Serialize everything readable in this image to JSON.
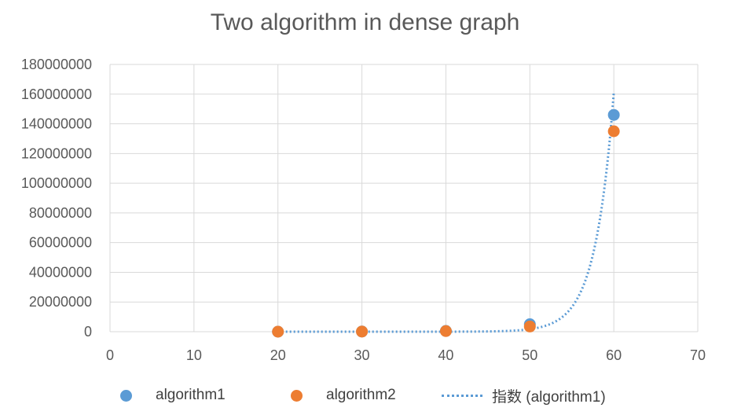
{
  "chart_data": {
    "type": "scatter",
    "title": "Two algorithm in dense graph",
    "xlim": [
      0,
      70
    ],
    "ylim": [
      0,
      180000000
    ],
    "xticks": [
      0,
      10,
      20,
      30,
      40,
      50,
      60,
      70
    ],
    "yticks": [
      0,
      20000000,
      40000000,
      60000000,
      80000000,
      100000000,
      120000000,
      140000000,
      160000000,
      180000000
    ],
    "grid": true,
    "legend_position": "bottom",
    "series": [
      {
        "name": "algorithm1",
        "color": "#5b9bd5",
        "marker": "circle",
        "x": [
          20,
          30,
          40,
          50,
          60
        ],
        "y": [
          0,
          100000,
          500000,
          5000000,
          146000000
        ]
      },
      {
        "name": "algorithm2",
        "color": "#ed7d31",
        "marker": "circle",
        "x": [
          20,
          30,
          40,
          50,
          60
        ],
        "y": [
          0,
          80000,
          400000,
          3500000,
          135000000
        ]
      }
    ],
    "trendline": {
      "name": "指数 (algorithm1)",
      "type": "exponential",
      "of": "algorithm1",
      "color": "#5b9bd5",
      "style": "dotted",
      "x": [
        20,
        60
      ],
      "y_start": 2,
      "y_end": 161000000
    }
  }
}
